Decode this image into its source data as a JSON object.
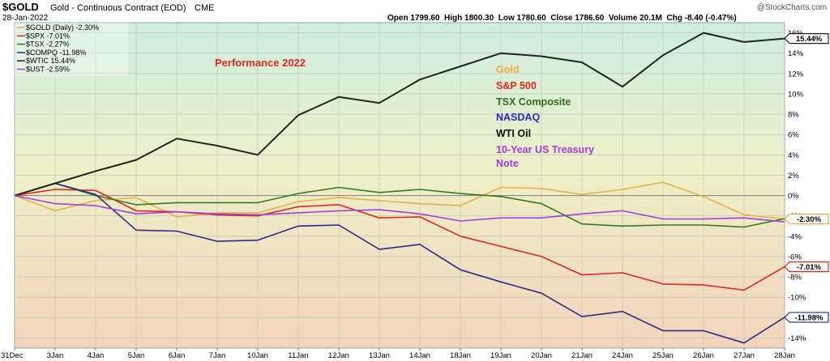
{
  "header": {
    "symbol": "$GOLD",
    "name": "Gold - Continuous Contract (EOD)",
    "exchange": "CME",
    "date": "28-Jan-2022",
    "ohlc": "Open 1799.60  High 1800.30  Low 1780.60  Close 1786.60  Volume 20.1M  Chg -8.40 (-0.47%)",
    "watermark": "@StockCharts.com"
  },
  "chart_data": {
    "type": "line",
    "title": "Performance 2022",
    "x": [
      "31Dec",
      "3Jan",
      "4Jan",
      "5Jan",
      "6Jan",
      "7Jan",
      "10Jan",
      "11Jan",
      "12Jan",
      "13Jan",
      "14Jan",
      "18Jan",
      "19Jan",
      "20Jan",
      "21Jan",
      "24Jan",
      "25Jan",
      "26Jan",
      "27Jan",
      "28Jan"
    ],
    "ylim": [
      -15,
      17
    ],
    "yticks": [
      "16%",
      "14%",
      "12%",
      "10%",
      "8%",
      "6%",
      "4%",
      "2%",
      "0%",
      "-2%",
      "-4%",
      "-6%",
      "-8%",
      "-10%",
      "-12%",
      "-14%"
    ],
    "ytick_values": [
      16,
      14,
      12,
      10,
      8,
      6,
      4,
      2,
      0,
      -2,
      -4,
      -6,
      -8,
      -10,
      -12,
      -14
    ],
    "legend_top_left": [
      {
        "text": "$GOLD (Daily) -2.30%",
        "color": "#e8a93a"
      },
      {
        "text": "$SPX -7.01%",
        "color": "#e0261e"
      },
      {
        "text": "$TSX -2.27%",
        "color": "#2e7d1e"
      },
      {
        "text": "$COMPQ -11.98%",
        "color": "#2b2b8c"
      },
      {
        "text": "$WTIC 15.44%",
        "color": "#222222"
      },
      {
        "text": "$UST -2.59%",
        "color": "#a040d8"
      }
    ],
    "legend_labels": [
      {
        "text": "Gold",
        "color": "#e8b04a"
      },
      {
        "text": "S&P 500",
        "color": "#e8261e"
      },
      {
        "text": "TSX Composite",
        "color": "#2e6e1e"
      },
      {
        "text": "NASDAQ",
        "color": "#2a2ad0"
      },
      {
        "text": "WTI Oil",
        "color": "#111111"
      },
      {
        "text": "10-Year US Treasury",
        "color": "#a63be0"
      },
      {
        "text": "Note",
        "color": "#a63be0"
      }
    ],
    "series": [
      {
        "key": "gold",
        "color": "#e8b04a",
        "values": [
          0,
          -1.5,
          -0.5,
          -0.2,
          -2.1,
          -1.7,
          -1.7,
          -0.6,
          -0.2,
          -0.5,
          -0.8,
          -1.0,
          0.8,
          0.7,
          0.1,
          0.6,
          1.3,
          -0.1,
          -1.9,
          -2.3
        ]
      },
      {
        "key": "spx",
        "color": "#e0261e",
        "values": [
          0,
          0.6,
          0.5,
          -1.5,
          -1.6,
          -1.9,
          -2.0,
          -1.1,
          -0.9,
          -2.2,
          -2.1,
          -4.0,
          -5.0,
          -6.0,
          -7.8,
          -7.6,
          -8.7,
          -8.8,
          -9.3,
          -7.01
        ]
      },
      {
        "key": "tsx",
        "color": "#2e7d1e",
        "values": [
          0,
          1.2,
          0.0,
          -0.9,
          -0.7,
          -0.7,
          -0.7,
          0.2,
          0.8,
          0.3,
          0.6,
          0.2,
          -0.1,
          -0.8,
          -2.8,
          -3.0,
          -2.9,
          -2.9,
          -3.1,
          -2.27
        ]
      },
      {
        "key": "compq",
        "color": "#2b2b8c",
        "values": [
          0,
          1.2,
          0.1,
          -3.4,
          -3.5,
          -4.5,
          -4.4,
          -3.0,
          -2.9,
          -5.3,
          -4.8,
          -7.3,
          -8.5,
          -9.6,
          -11.9,
          -11.4,
          -13.3,
          -13.3,
          -14.5,
          -11.98
        ]
      },
      {
        "key": "wtic",
        "color": "#222222",
        "values": [
          0,
          1.2,
          2.4,
          3.5,
          5.6,
          4.9,
          4.0,
          7.9,
          9.7,
          9.1,
          11.4,
          12.7,
          14.0,
          13.7,
          13.1,
          10.7,
          13.8,
          16.0,
          15.1,
          15.44
        ]
      },
      {
        "key": "ust",
        "color": "#a040d8",
        "values": [
          0,
          -0.8,
          -1.0,
          -1.8,
          -1.6,
          -1.8,
          -1.9,
          -1.7,
          -1.5,
          -1.4,
          -1.8,
          -2.5,
          -2.2,
          -2.2,
          -1.8,
          -1.5,
          -2.3,
          -2.3,
          -2.2,
          -2.59
        ]
      }
    ],
    "end_labels": [
      {
        "text": "15.44%",
        "value": 15.44,
        "color": "#222222",
        "bg": "#222222"
      },
      {
        "text": "-2.30%",
        "value": -2.3,
        "color": "#e8a93a",
        "bg": "#e8a93a"
      },
      {
        "text": "-7.01%",
        "value": -7.01,
        "color": "#e0261e",
        "bg": "#e0261e"
      },
      {
        "text": "-11.98%",
        "value": -11.98,
        "color": "#2b2b8c",
        "bg": "#2b2b8c"
      }
    ]
  }
}
